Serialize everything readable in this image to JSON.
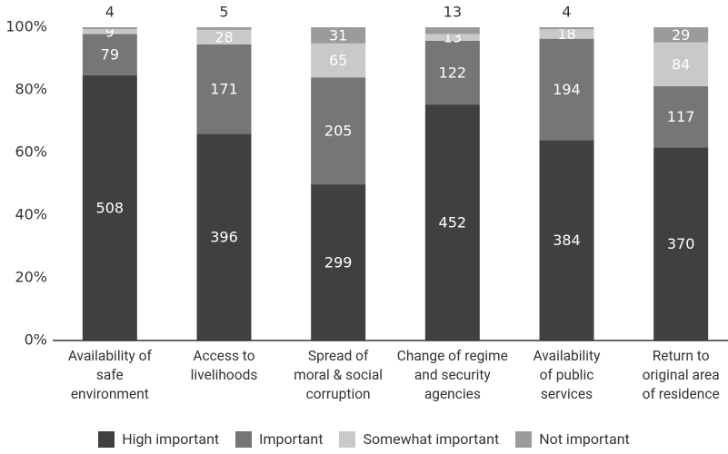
{
  "chart_data": {
    "type": "bar",
    "stacked": "percent",
    "categories": [
      "Availability of\nsafe\nenvironment",
      "Access to\nlivelihoods",
      "Spread of\nmoral & social\ncorruption",
      "Change of regime\nand security\nagencies",
      "Availability\nof public\nservices",
      "Return to\noriginal area\nof residence"
    ],
    "series": [
      {
        "name": "High important",
        "color": "#404040",
        "values": [
          508,
          396,
          299,
          452,
          384,
          370
        ]
      },
      {
        "name": "Important",
        "color": "#767676",
        "values": [
          79,
          171,
          205,
          122,
          194,
          117
        ]
      },
      {
        "name": "Somewhat important",
        "color": "#c9c9c9",
        "values": [
          9,
          28,
          65,
          13,
          18,
          84
        ]
      },
      {
        "name": "Not important",
        "color": "#9b9b9b",
        "values": [
          4,
          5,
          31,
          13,
          4,
          29
        ]
      }
    ],
    "ylim": [
      0,
      100
    ],
    "yticks": [
      {
        "value": 0,
        "label": "0%"
      },
      {
        "value": 20,
        "label": "20%"
      },
      {
        "value": 40,
        "label": "40%"
      },
      {
        "value": 60,
        "label": "60%"
      },
      {
        "value": 80,
        "label": "80%"
      },
      {
        "value": 100,
        "label": "100%"
      }
    ],
    "legend": "bottom"
  }
}
